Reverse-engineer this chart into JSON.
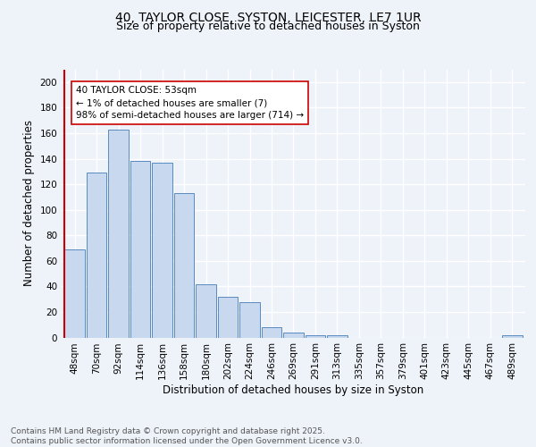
{
  "title_line1": "40, TAYLOR CLOSE, SYSTON, LEICESTER, LE7 1UR",
  "title_line2": "Size of property relative to detached houses in Syston",
  "xlabel": "Distribution of detached houses by size in Syston",
  "ylabel": "Number of detached properties",
  "bar_labels": [
    "48sqm",
    "70sqm",
    "92sqm",
    "114sqm",
    "136sqm",
    "158sqm",
    "180sqm",
    "202sqm",
    "224sqm",
    "246sqm",
    "269sqm",
    "291sqm",
    "313sqm",
    "335sqm",
    "357sqm",
    "379sqm",
    "401sqm",
    "423sqm",
    "445sqm",
    "467sqm",
    "489sqm"
  ],
  "bar_values": [
    69,
    129,
    163,
    138,
    137,
    113,
    42,
    32,
    28,
    8,
    4,
    2,
    2,
    0,
    0,
    0,
    0,
    0,
    0,
    0,
    2
  ],
  "bar_color": "#c8d9ef",
  "bar_edge_color": "#5a8bbf",
  "marker_color": "#cc0000",
  "annotation_text": "40 TAYLOR CLOSE: 53sqm\n← 1% of detached houses are smaller (7)\n98% of semi-detached houses are larger (714) →",
  "annotation_box_color": "#ffffff",
  "annotation_box_edge": "#cc0000",
  "ylim": [
    0,
    210
  ],
  "yticks": [
    0,
    20,
    40,
    60,
    80,
    100,
    120,
    140,
    160,
    180,
    200
  ],
  "footer_text": "Contains HM Land Registry data © Crown copyright and database right 2025.\nContains public sector information licensed under the Open Government Licence v3.0.",
  "bg_color": "#eef2f9",
  "grid_color": "#ffffff",
  "title_fontsize": 10,
  "subtitle_fontsize": 9,
  "axis_label_fontsize": 8.5,
  "tick_fontsize": 7.5,
  "annotation_fontsize": 7.5,
  "footer_fontsize": 6.5
}
